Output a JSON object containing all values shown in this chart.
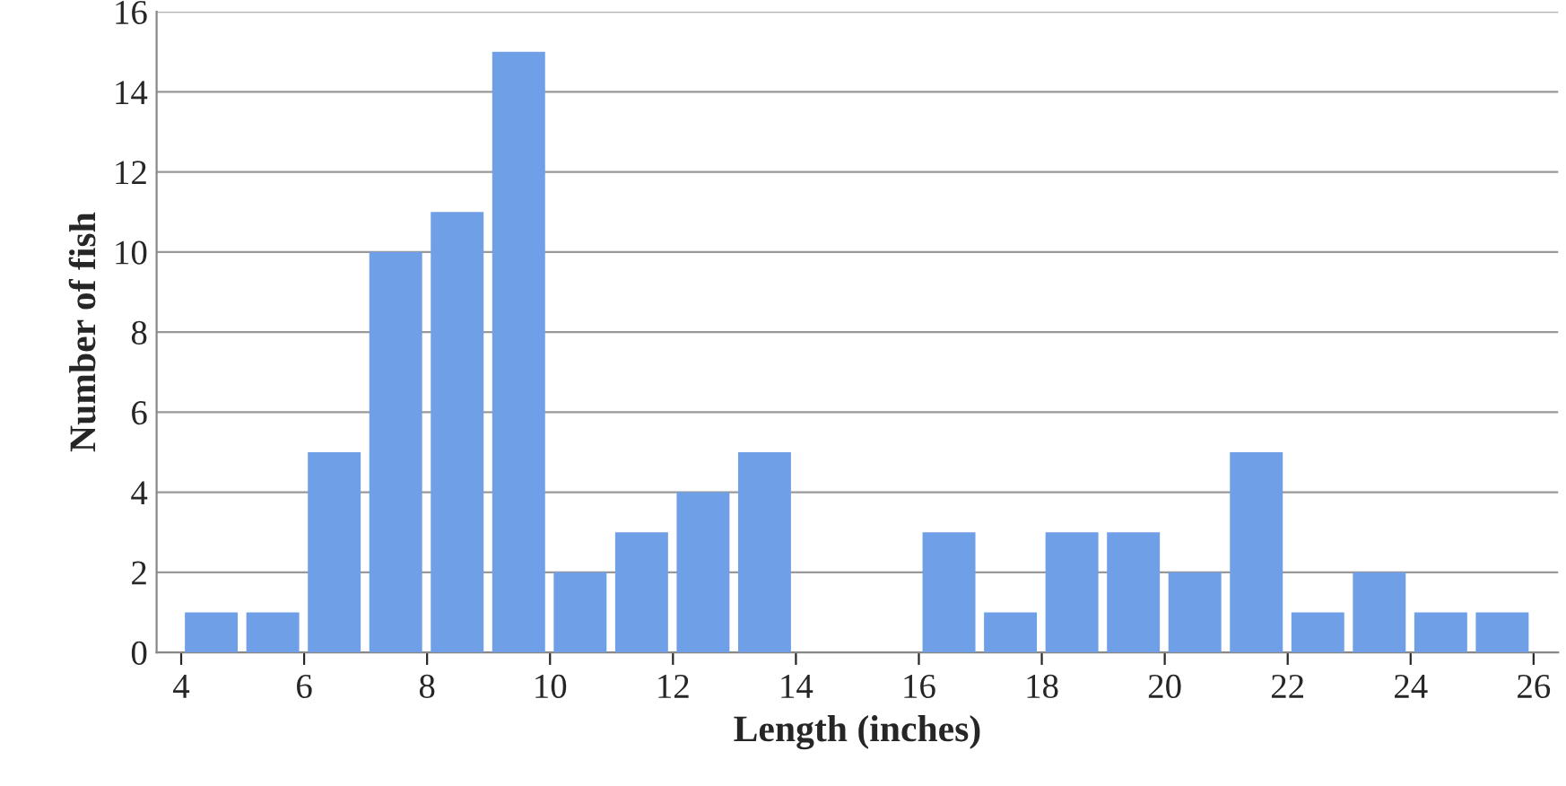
{
  "chart_data": {
    "type": "histogram",
    "xlabel": "Length (inches)",
    "ylabel": "Number of fish",
    "bins": [
      4,
      5,
      6,
      7,
      8,
      9,
      10,
      11,
      12,
      13,
      14,
      15,
      16,
      17,
      18,
      19,
      20,
      21,
      22,
      23,
      24,
      25,
      26
    ],
    "values": [
      1,
      1,
      5,
      10,
      11,
      15,
      2,
      3,
      4,
      5,
      0,
      0,
      3,
      1,
      3,
      3,
      2,
      5,
      1,
      2,
      1,
      1
    ],
    "color": "#6f9fe6",
    "xlim": [
      3.6,
      26.4
    ],
    "xticks": [
      4,
      6,
      8,
      10,
      12,
      14,
      16,
      18,
      20,
      22,
      24,
      26
    ],
    "ylim": [
      0,
      16
    ],
    "yticks": [
      0,
      2,
      4,
      6,
      8,
      10,
      12,
      14,
      16
    ],
    "grid": "y"
  }
}
